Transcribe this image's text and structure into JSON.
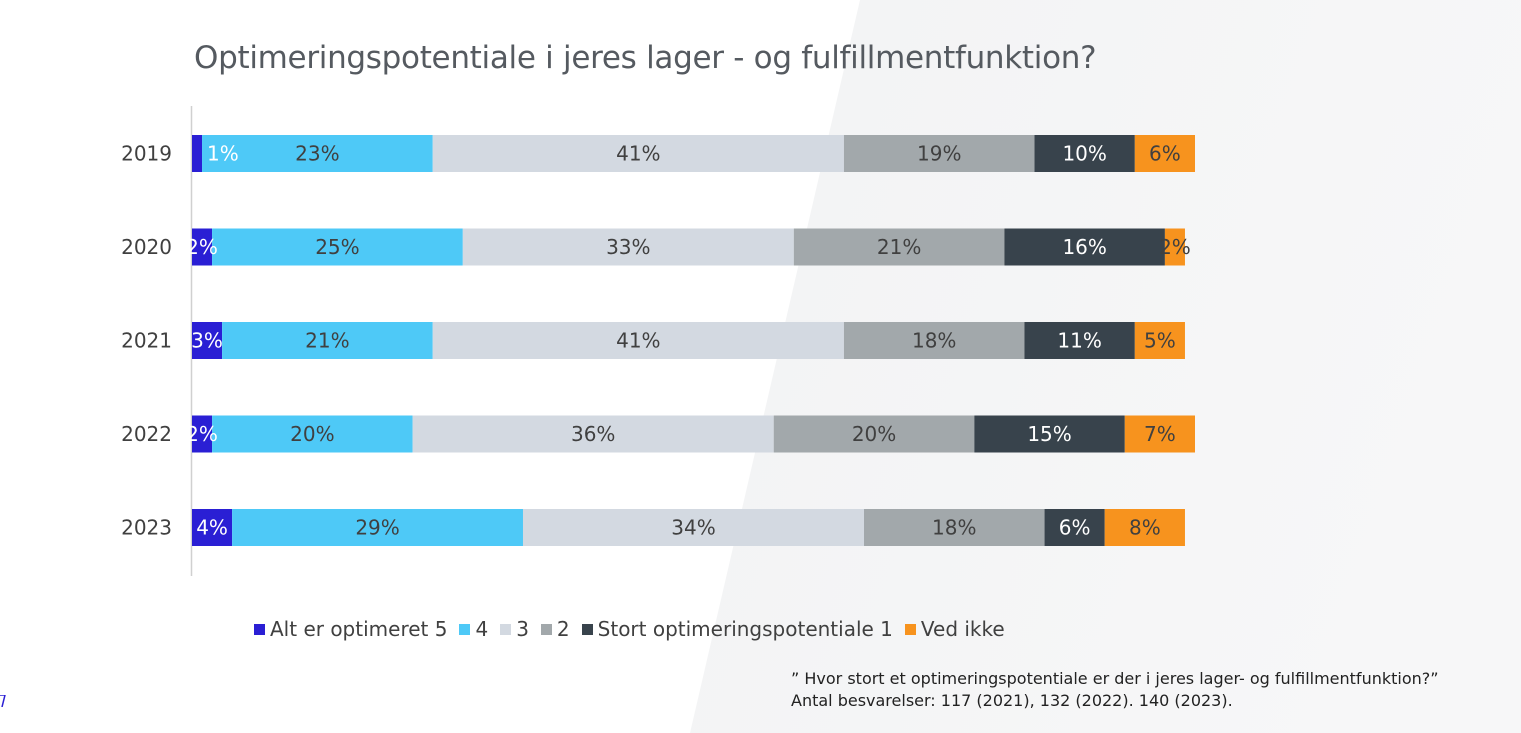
{
  "chart_data": {
    "type": "bar",
    "orientation": "horizontal",
    "stacked": true,
    "title": "Optimeringspotentiale i jeres lager  - og fulfillmentfunktion?",
    "categories": [
      "2019",
      "2020",
      "2021",
      "2022",
      "2023"
    ],
    "series": [
      {
        "name": "Alt er optimeret 5",
        "color": "#2a1fd4",
        "text_color": "#ffffff",
        "values": [
          1,
          2,
          3,
          2,
          4
        ],
        "labels": [
          "1%",
          "2%",
          "3%",
          "2%",
          "4%"
        ]
      },
      {
        "name": "4",
        "color": "#4ec9f7",
        "text_color": "#404040",
        "values": [
          23,
          25,
          21,
          20,
          29
        ],
        "labels": [
          "23%",
          "25%",
          "21%",
          "20%",
          "29%"
        ]
      },
      {
        "name": "3",
        "color": "#d3d9e1",
        "text_color": "#404040",
        "values": [
          41,
          33,
          41,
          36,
          34
        ],
        "labels": [
          "41%",
          "33%",
          "41%",
          "36%",
          "34%"
        ]
      },
      {
        "name": "2",
        "color": "#a2a8ab",
        "text_color": "#404040",
        "values": [
          19,
          21,
          18,
          20,
          18
        ],
        "labels": [
          "19%",
          "21%",
          "18%",
          "20%",
          "18%"
        ]
      },
      {
        "name": "Stort optimeringspotentiale 1",
        "color": "#38434c",
        "text_color": "#ffffff",
        "values": [
          10,
          16,
          11,
          15,
          6
        ],
        "labels": [
          "10%",
          "16%",
          "11%",
          "15%",
          "6%"
        ]
      },
      {
        "name": "Ved ikke",
        "color": "#f7931e",
        "text_color": "#404040",
        "values": [
          6,
          2,
          5,
          7,
          8
        ],
        "labels": [
          "6%",
          "2%",
          "5%",
          "7%",
          "8%"
        ]
      }
    ],
    "xlim": [
      0,
      100
    ],
    "grid": false,
    "legend_position": "bottom"
  },
  "footnote": {
    "line1": "” Hvor stort et optimeringspotentiale er der i jeres lager- og fulfillmentfunktion?”",
    "line2": "Antal besvarelser: 117 (2021), 132 (2022). 140 (2023)."
  }
}
